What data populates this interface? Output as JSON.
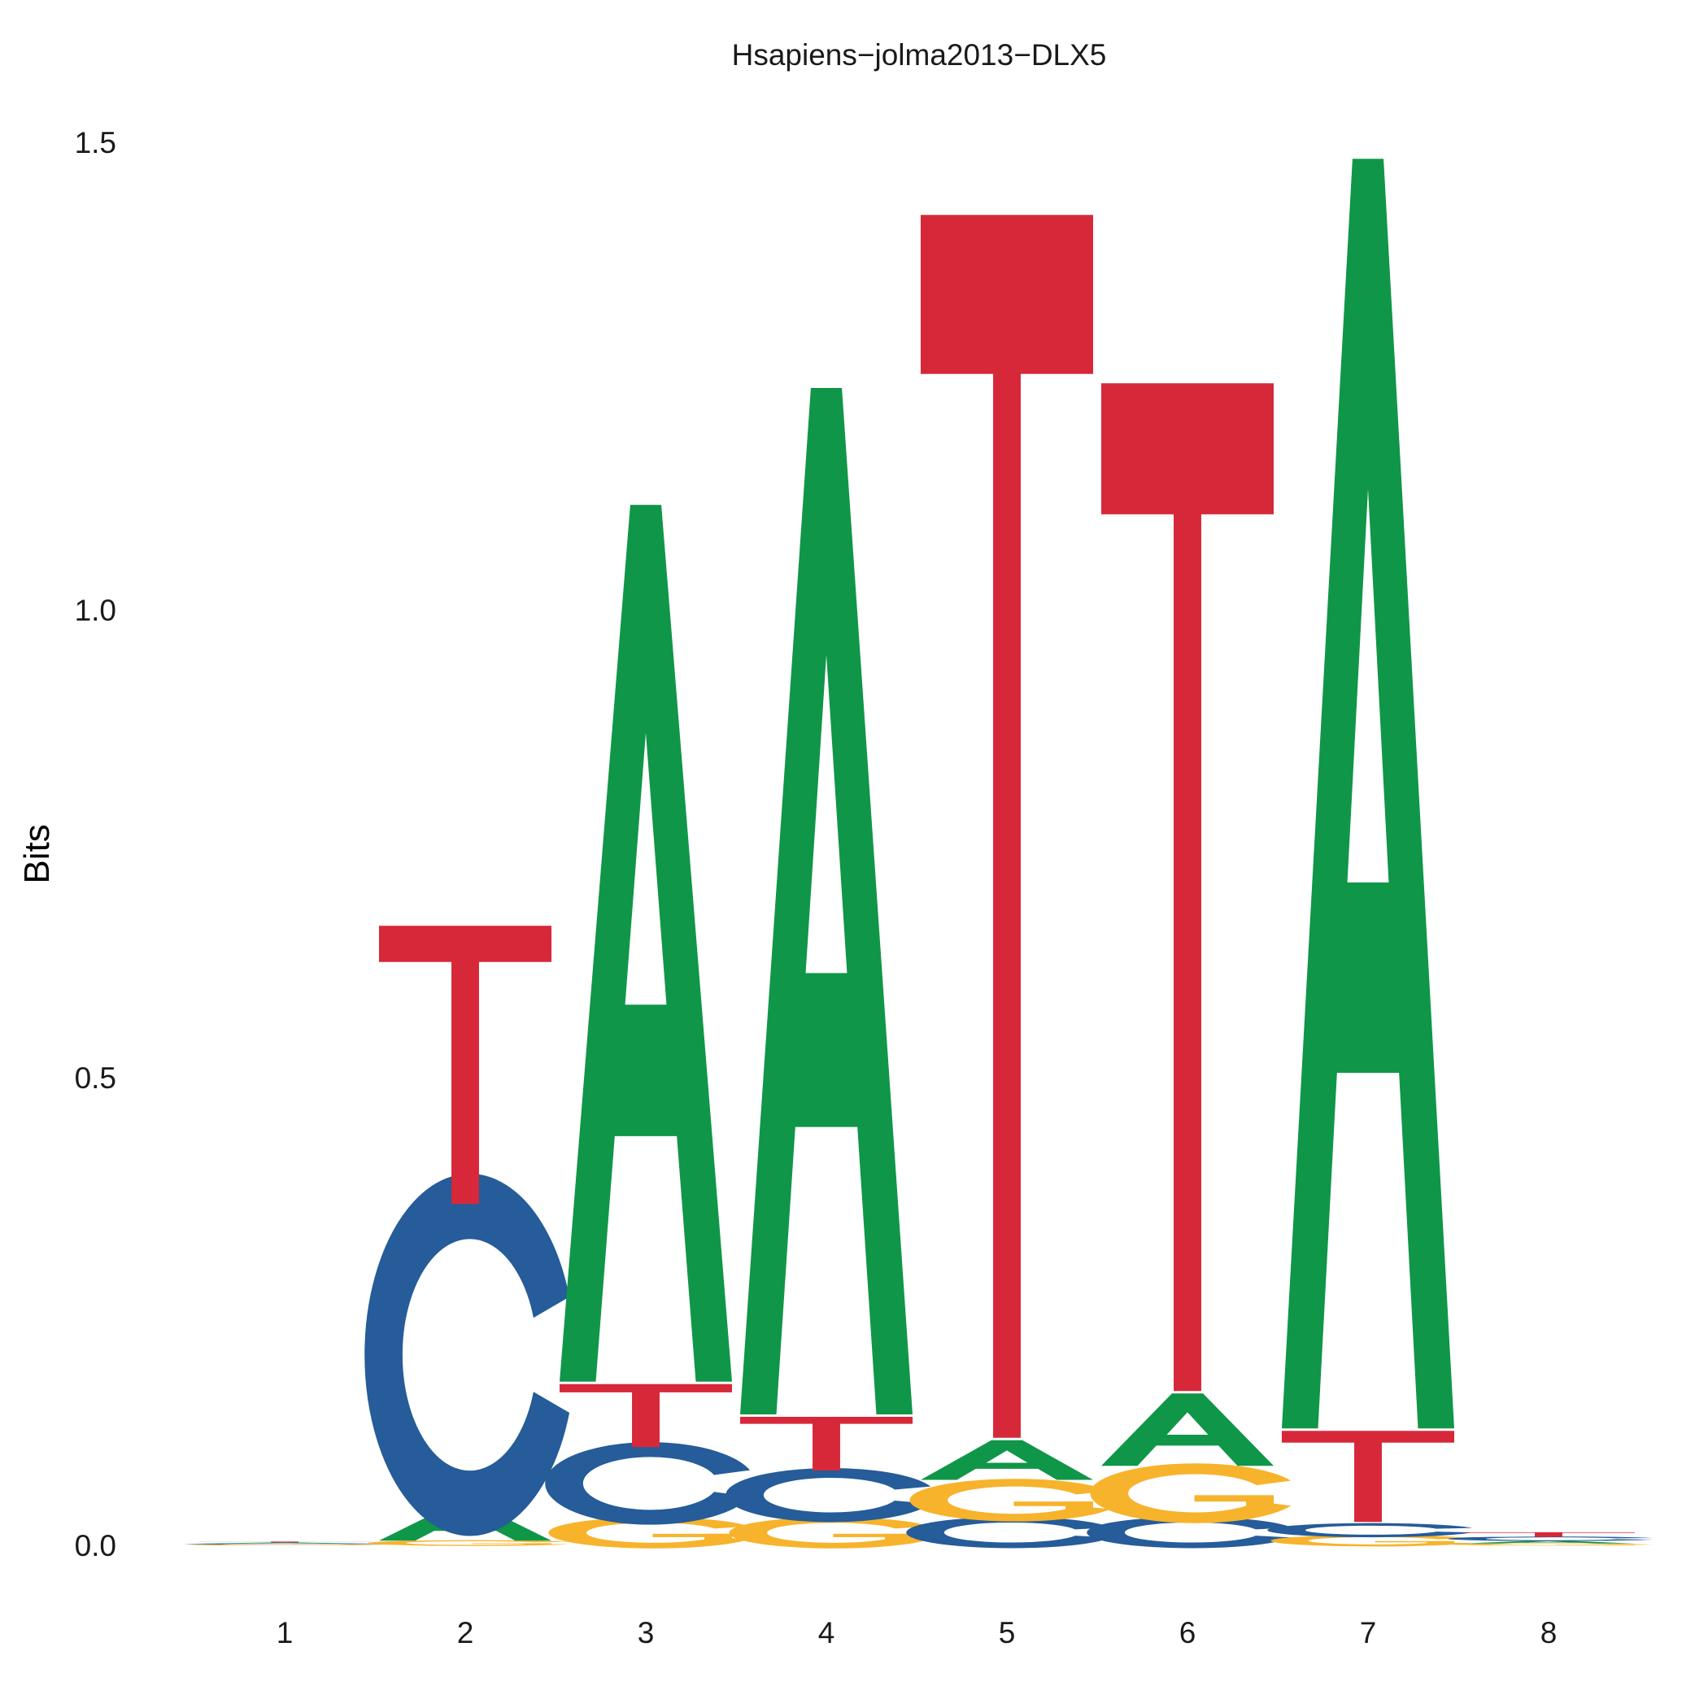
{
  "chart_data": {
    "type": "sequence-logo",
    "title": "Hsapiens−jolma2013−DLX5",
    "ylabel": "Bits",
    "xlabel": "",
    "ylim": [
      0,
      1.5
    ],
    "y_ticks": [
      "0.0",
      "0.5",
      "1.0",
      "1.5"
    ],
    "y_tick_values": [
      0,
      0.5,
      1.0,
      1.5
    ],
    "positions": [
      "1",
      "2",
      "3",
      "4",
      "5",
      "6",
      "7",
      "8"
    ],
    "colors": {
      "A": "#109648",
      "C": "#255C99",
      "G": "#F7B32B",
      "T": "#D62839"
    },
    "stacks": [
      {
        "position": "1",
        "letters": [
          {
            "letter": "G",
            "bits": 0.001
          },
          {
            "letter": "C",
            "bits": 0.001
          },
          {
            "letter": "A",
            "bits": 0.001
          },
          {
            "letter": "T",
            "bits": 0.001
          }
        ]
      },
      {
        "position": "2",
        "letters": [
          {
            "letter": "G",
            "bits": 0.005
          },
          {
            "letter": "A",
            "bits": 0.04
          },
          {
            "letter": "C",
            "bits": 0.32
          },
          {
            "letter": "T",
            "bits": 0.3
          }
        ]
      },
      {
        "position": "3",
        "letters": [
          {
            "letter": "G",
            "bits": 0.03
          },
          {
            "letter": "C",
            "bits": 0.075
          },
          {
            "letter": "T",
            "bits": 0.07
          },
          {
            "letter": "A",
            "bits": 0.94
          }
        ]
      },
      {
        "position": "4",
        "letters": [
          {
            "letter": "G",
            "bits": 0.03
          },
          {
            "letter": "C",
            "bits": 0.05
          },
          {
            "letter": "T",
            "bits": 0.06
          },
          {
            "letter": "A",
            "bits": 1.1
          }
        ]
      },
      {
        "position": "5",
        "letters": [
          {
            "letter": "C",
            "bits": 0.03
          },
          {
            "letter": "G",
            "bits": 0.04
          },
          {
            "letter": "A",
            "bits": 0.045
          },
          {
            "letter": "T",
            "bits": 1.31
          }
        ]
      },
      {
        "position": "6",
        "letters": [
          {
            "letter": "C",
            "bits": 0.03
          },
          {
            "letter": "G",
            "bits": 0.055
          },
          {
            "letter": "A",
            "bits": 0.08
          },
          {
            "letter": "T",
            "bits": 1.08
          }
        ]
      },
      {
        "position": "7",
        "letters": [
          {
            "letter": "G",
            "bits": 0.01
          },
          {
            "letter": "C",
            "bits": 0.015
          },
          {
            "letter": "T",
            "bits": 0.1
          },
          {
            "letter": "A",
            "bits": 1.36
          }
        ]
      },
      {
        "position": "8",
        "letters": [
          {
            "letter": "G",
            "bits": 0.002
          },
          {
            "letter": "A",
            "bits": 0.003
          },
          {
            "letter": "C",
            "bits": 0.004
          },
          {
            "letter": "T",
            "bits": 0.005
          }
        ]
      }
    ]
  }
}
